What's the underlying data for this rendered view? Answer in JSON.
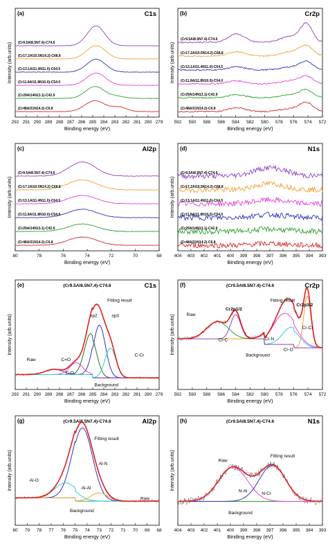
{
  "colors": {
    "red": "#d62728",
    "green": "#2ca02c",
    "magenta": "#e040e0",
    "blue": "#3030c0",
    "orange": "#f0a030",
    "purple": "#9040c0",
    "navy": "#202070",
    "cyan": "#30c8d8",
    "darkgreen": "#207020"
  },
  "chart_data": [
    {
      "type": "line",
      "panel": "(a)",
      "title": "C1s",
      "xlabel": "Binding energy (eV)",
      "ylabel": "Intensity (arb.units)",
      "xlim": [
        292,
        279
      ],
      "x_ticks": [
        "292",
        "291",
        "290",
        "289",
        "288",
        "287",
        "286",
        "285",
        "284",
        "283",
        "282",
        "281",
        "280",
        "279"
      ],
      "series_labels": [
        "(Cr48Al31N14.2)-C6.8",
        "(Cr29Al14N13.1)-C42.9",
        "(Cr11.8Al11.8N10.0)-C54.0",
        "(Cr13.1Al11.4N11.0)-C64.5",
        "(Cr17.2Al10.5N14.2)-C68.8",
        "(Cr9.5Al8.5N7.4)-C74.6"
      ],
      "series": [
        {
          "color": "red",
          "peaks": [
            [
              284.8,
              0.55,
              0.9
            ],
            [
              282.6,
              0.22,
              0.7
            ]
          ]
        },
        {
          "color": "green",
          "peaks": [
            [
              284.8,
              0.6,
              0.85
            ],
            [
              282.8,
              0.1,
              0.7
            ]
          ]
        },
        {
          "color": "magenta",
          "peaks": [
            [
              284.7,
              0.62,
              0.85
            ]
          ]
        },
        {
          "color": "blue",
          "peaks": [
            [
              284.7,
              0.65,
              0.85
            ]
          ]
        },
        {
          "color": "orange",
          "peaks": [
            [
              284.7,
              0.68,
              0.85
            ]
          ]
        },
        {
          "color": "purple",
          "peaks": [
            [
              284.7,
              1.0,
              0.8
            ]
          ]
        }
      ]
    },
    {
      "type": "line",
      "panel": "(b)",
      "title": "Cr2p",
      "xlabel": "Binding energy (eV)",
      "ylabel": "Intensity (arb.units)",
      "xlim": [
        592,
        572
      ],
      "x_ticks": [
        "592",
        "590",
        "588",
        "586",
        "584",
        "582",
        "580",
        "578",
        "576",
        "574",
        "572"
      ],
      "series_labels": [
        "(Cr48Al31N14.2)-C6.8",
        "(Cr29Al14N13.1)-C42.9",
        "(Cr11.8Al11.8N10.0)-C54.0",
        "(Cr13.1Al11.4N11.0)-C64.5",
        "(Cr17.2Al10.5N14.2)-C68.8",
        "(Cr9.5Al8.5N7.4)-C74.6"
      ],
      "series": [
        {
          "color": "red",
          "peaks": [
            [
              583.9,
              0.25,
              1.2
            ],
            [
              574.2,
              0.55,
              0.9
            ],
            [
              576.2,
              0.2,
              1.5
            ]
          ]
        },
        {
          "color": "green",
          "peaks": [
            [
              583.9,
              0.2,
              1.2
            ],
            [
              574.2,
              0.45,
              0.9
            ],
            [
              576.2,
              0.2,
              1.5
            ]
          ]
        },
        {
          "color": "magenta",
          "peaks": [
            [
              583.9,
              0.2,
              1.2
            ],
            [
              574.2,
              0.45,
              0.9
            ],
            [
              576.2,
              0.2,
              1.5
            ]
          ]
        },
        {
          "color": "blue",
          "peaks": [
            [
              583.9,
              0.2,
              1.2
            ],
            [
              574.2,
              0.5,
              0.9
            ],
            [
              576.2,
              0.2,
              1.5
            ]
          ]
        },
        {
          "color": "orange",
          "peaks": [
            [
              583.9,
              0.3,
              1.2
            ],
            [
              574.2,
              0.6,
              0.9
            ],
            [
              576.2,
              0.3,
              1.5
            ]
          ]
        },
        {
          "color": "purple",
          "peaks": [
            [
              583.9,
              0.55,
              1.1
            ],
            [
              574.2,
              1.1,
              0.8
            ],
            [
              576.2,
              0.4,
              1.5
            ]
          ]
        }
      ]
    },
    {
      "type": "line",
      "panel": "(c)",
      "title": "Al2p",
      "xlabel": "Binding energy (eV)",
      "ylabel": "Intensity (arb.units)",
      "xlim": [
        80,
        68
      ],
      "x_ticks": [
        "80",
        "78",
        "76",
        "74",
        "72",
        "70",
        "68"
      ],
      "series_labels": [
        "(Cr48Al31N14.2)-C6.8",
        "(Cr29Al14N13.1)-C42.9",
        "(Cr11.8Al11.8N10.0)-C54.0",
        "(Cr13.1Al11.4N11.0)-C64.5",
        "(Cr17.2Al10.5N14.2)-C68.8",
        "(Cr9.5Al8.5N7.4)-C74.6"
      ],
      "series": [
        {
          "color": "red",
          "peaks": [
            [
              74.4,
              0.5,
              1.2
            ]
          ]
        },
        {
          "color": "green",
          "peaks": [
            [
              74.4,
              0.45,
              1.2
            ]
          ]
        },
        {
          "color": "blue",
          "peaks": [
            [
              74.4,
              0.5,
              1.2
            ]
          ]
        },
        {
          "color": "magenta",
          "peaks": [
            [
              74.4,
              0.5,
              1.2
            ]
          ]
        },
        {
          "color": "orange",
          "peaks": [
            [
              74.4,
              0.6,
              1.2
            ]
          ]
        },
        {
          "color": "purple",
          "peaks": [
            [
              74.4,
              0.85,
              1.1
            ]
          ]
        }
      ]
    },
    {
      "type": "line",
      "panel": "(d)",
      "title": "N1s",
      "xlabel": "Binding energy (eV)",
      "ylabel": "Intensity (arb.units)",
      "xlim": [
        404,
        393
      ],
      "x_ticks": [
        "404",
        "403",
        "402",
        "401",
        "400",
        "399",
        "398",
        "397",
        "396",
        "395",
        "394",
        "393"
      ],
      "series_labels": [
        "(Cr48Al31N14.2)-C6.8",
        "(Cr29Al14N13.1)-C42.9",
        "(Cr11.8Al11.8N10.0)-C54.0",
        "(Cr13.1Al11.4N11.0)-C64.5",
        "(Cr17.2Al10.5N14.2)-C68.8",
        "(Cr9.5Al8.5N7.4)-C74.6"
      ],
      "series": [
        {
          "color": "red",
          "peaks": [
            [
              397.0,
              0.12,
              1.2
            ]
          ]
        },
        {
          "color": "green",
          "peaks": [
            [
              397.0,
              0.15,
              1.2
            ]
          ]
        },
        {
          "color": "blue",
          "peaks": [
            [
              397.0,
              0.2,
              1.2
            ]
          ]
        },
        {
          "color": "magenta",
          "peaks": [
            [
              397.0,
              0.25,
              1.2
            ]
          ]
        },
        {
          "color": "orange",
          "peaks": [
            [
              397.0,
              0.4,
              1.2
            ]
          ]
        },
        {
          "color": "purple",
          "peaks": [
            [
              397.0,
              0.55,
              1.2
            ]
          ]
        }
      ]
    },
    {
      "type": "line",
      "panel": "(e)",
      "title": "C1s",
      "sample": "(Cr9.5Al8.5N7.4)-C74.6",
      "xlabel": "Binding energy (eV)",
      "ylabel": "Intensity (arb.units)",
      "xlim": [
        292,
        279
      ],
      "x_ticks": [
        "292",
        "291",
        "290",
        "289",
        "288",
        "287",
        "286",
        "285",
        "284",
        "283",
        "282",
        "281",
        "280",
        "279"
      ],
      "components": [
        {
          "name": "sp2",
          "center": 284.4,
          "height": 0.8,
          "width": 0.55,
          "color": "blue"
        },
        {
          "name": "sp3",
          "center": 285.2,
          "height": 0.62,
          "width": 0.55,
          "color": "darkgreen"
        },
        {
          "name": "C-O",
          "center": 286.5,
          "height": 0.18,
          "width": 0.6,
          "color": "magenta"
        },
        {
          "name": "C=O",
          "center": 288.5,
          "height": 0.08,
          "width": 0.8,
          "color": "purple"
        },
        {
          "name": "C-Cr",
          "center": 283.4,
          "height": 0.45,
          "width": 0.5,
          "color": "cyan"
        }
      ],
      "labels": [
        "Raw",
        "Fitting result",
        "sp2",
        "sp3",
        "C=O",
        "C-O",
        "Background",
        "C-Cr"
      ]
    },
    {
      "type": "line",
      "panel": "(f)",
      "title": "Cr2p",
      "sample": "(Cr9.5Al8.5N7.4)-C74.6",
      "xlabel": "Binding energy (eV)",
      "ylabel": "Intensity (arb.units)",
      "xlim": [
        592,
        572
      ],
      "x_ticks": [
        "592",
        "590",
        "588",
        "586",
        "584",
        "582",
        "580",
        "578",
        "576",
        "574",
        "572"
      ],
      "components": [
        {
          "name": "Cr-N",
          "center": 577.2,
          "height": 0.45,
          "width": 1.6,
          "color": "magenta"
        },
        {
          "name": "Cr-O",
          "center": 576.3,
          "height": 0.25,
          "width": 1.2,
          "color": "cyan"
        },
        {
          "name": "Cr-C",
          "center": 574.1,
          "height": 0.75,
          "width": 0.5,
          "color": "orange"
        },
        {
          "name": "Cr-N 2p1/2",
          "center": 586.5,
          "height": 0.25,
          "width": 1.5,
          "color": "green"
        },
        {
          "name": "Cr-C 2p1/2",
          "center": 584.0,
          "height": 0.35,
          "width": 0.7,
          "color": "purple"
        }
      ],
      "labels": [
        "Raw",
        "Cr2p1/2",
        "Cr-C",
        "Background",
        "Cr-N",
        "Cr-O",
        "Cr2p3/2",
        "Cr-Cr",
        "Fitting result"
      ]
    },
    {
      "type": "line",
      "panel": "(g)",
      "title": "Al2p",
      "sample": "(Cr9.5Al8.5N7.4)-C74.6",
      "xlabel": "Binding energy (eV)",
      "ylabel": "Intensity (arb.units)",
      "xlim": [
        80,
        68
      ],
      "x_ticks": [
        "80",
        "79",
        "78",
        "77",
        "76",
        "75",
        "74",
        "73",
        "72",
        "71",
        "70",
        "69",
        "68"
      ],
      "components": [
        {
          "name": "Al-N",
          "center": 74.4,
          "height": 0.88,
          "width": 0.85,
          "color": "blue"
        },
        {
          "name": "Al-O",
          "center": 75.8,
          "height": 0.18,
          "width": 0.9,
          "color": "cyan"
        },
        {
          "name": "Al-Al",
          "center": 73.0,
          "height": 0.1,
          "width": 0.7,
          "color": "orange"
        }
      ],
      "labels": [
        "Fitting result",
        "Al-N",
        "Al-O",
        "Al-Al",
        "Raw",
        "Background"
      ]
    },
    {
      "type": "line",
      "panel": "(h)",
      "title": "N1s",
      "sample": "(Cr9.5Al8.5N7.4)-C74.6",
      "xlabel": "Binding energy (eV)",
      "ylabel": "Intensity (arb.units)",
      "xlim": [
        404,
        393
      ],
      "x_ticks": [
        "404",
        "403",
        "402",
        "401",
        "400",
        "399",
        "398",
        "397",
        "396",
        "395",
        "394",
        "393"
      ],
      "components": [
        {
          "name": "N-Al",
          "center": 399.8,
          "height": 0.55,
          "width": 1.1,
          "color": "magenta"
        },
        {
          "name": "N-Cr",
          "center": 396.8,
          "height": 0.58,
          "width": 1.0,
          "color": "blue"
        }
      ],
      "labels": [
        "Raw",
        "Fitting result",
        "N-Al",
        "N-Cr",
        "Background"
      ]
    }
  ]
}
